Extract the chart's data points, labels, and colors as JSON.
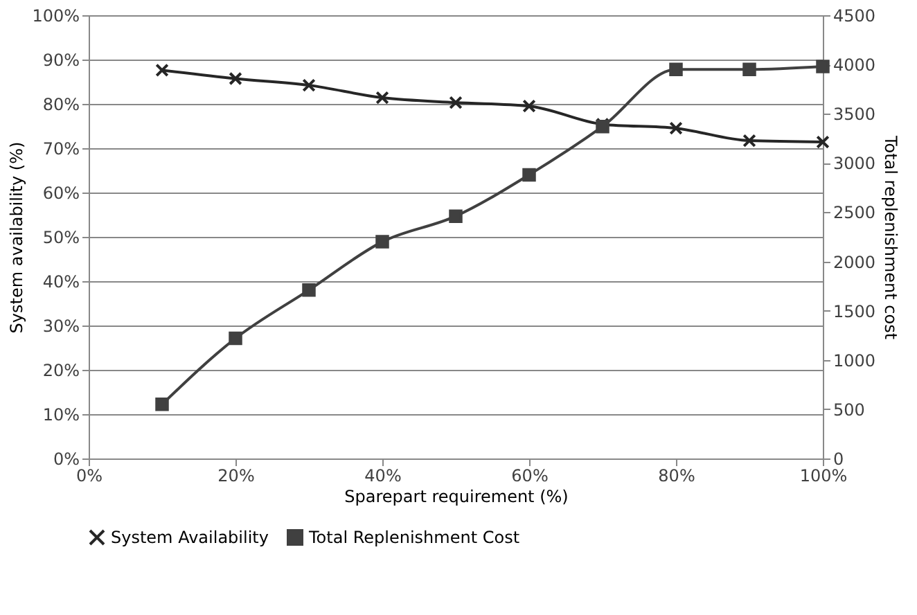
{
  "chart_data": {
    "type": "line",
    "xlabel": "Sparepart requirement (%)",
    "ylabel": "System availability (%)",
    "y2label": "Total replenishment cost",
    "x": [
      10,
      20,
      30,
      40,
      50,
      60,
      70,
      80,
      90,
      100
    ],
    "series": [
      {
        "name": "System Availability",
        "color": "#262626",
        "marker": "cross",
        "values": [
          87.6,
          85.7,
          84.2,
          81.4,
          80.3,
          79.5,
          75.4,
          74.5,
          71.7,
          71.4
        ]
      },
      {
        "name": "Total Replenishment Cost",
        "color": "#404040",
        "marker": "square",
        "axis": "y2",
        "values": [
          550,
          1220,
          1710,
          2200,
          2460,
          2880,
          3370,
          3950,
          3950,
          3980
        ]
      }
    ],
    "xlim": [
      0,
      100
    ],
    "xticks": [
      {
        "value": 0,
        "label": "0%"
      },
      {
        "value": 20,
        "label": "20%"
      },
      {
        "value": 40,
        "label": "40%"
      },
      {
        "value": 60,
        "label": "60%"
      },
      {
        "value": 80,
        "label": "80%"
      },
      {
        "value": 100,
        "label": "100%"
      }
    ],
    "ylim": [
      0,
      100
    ],
    "yticks": [
      {
        "value": 0,
        "label": "0%"
      },
      {
        "value": 10,
        "label": "10%"
      },
      {
        "value": 20,
        "label": "20%"
      },
      {
        "value": 30,
        "label": "30%"
      },
      {
        "value": 40,
        "label": "40%"
      },
      {
        "value": 50,
        "label": "50%"
      },
      {
        "value": 60,
        "label": "60%"
      },
      {
        "value": 70,
        "label": "70%"
      },
      {
        "value": 80,
        "label": "80%"
      },
      {
        "value": 90,
        "label": "90%"
      },
      {
        "value": 100,
        "label": "100%"
      }
    ],
    "y2lim": [
      0,
      4500
    ],
    "y2ticks": [
      0,
      500,
      1000,
      1500,
      2000,
      2500,
      3000,
      3500,
      4000,
      4500
    ],
    "grid": "y",
    "legend": "bottom",
    "line_style": "solid"
  }
}
